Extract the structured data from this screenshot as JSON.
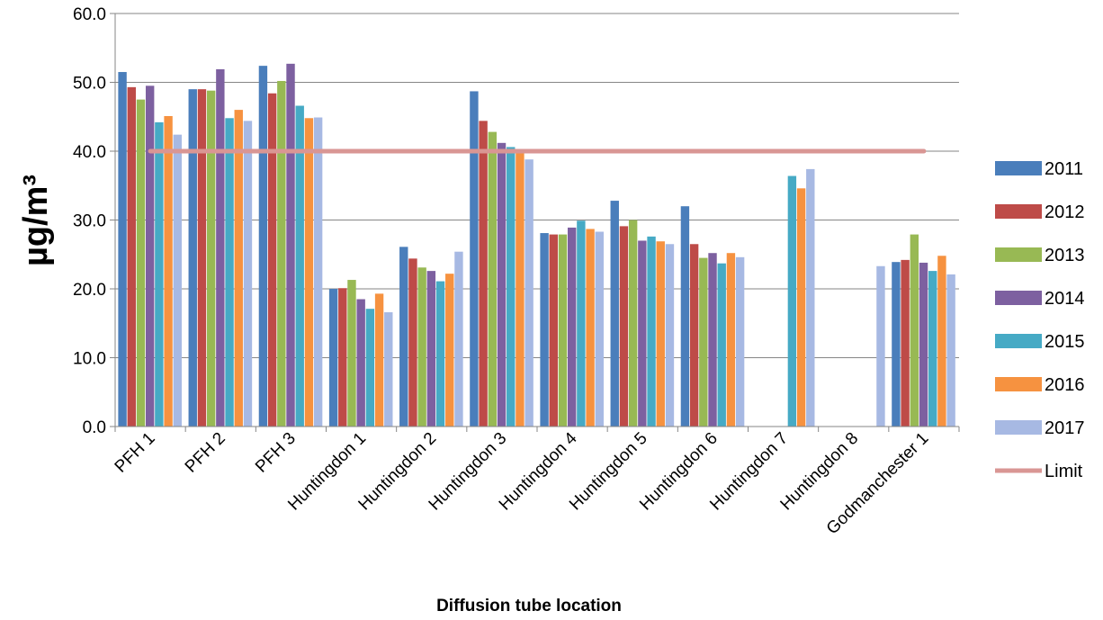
{
  "chart_data": {
    "type": "bar",
    "xlabel": "Diffusion tube location",
    "ylabel": "µg/m³",
    "ylim": [
      0,
      60
    ],
    "yticks": [
      "0.0",
      "10.0",
      "20.0",
      "30.0",
      "40.0",
      "50.0",
      "60.0"
    ],
    "grid": "horizontal",
    "legend_position": "right",
    "categories": [
      "PFH 1",
      "PFH 2",
      "PFH 3",
      "Huntingdon 1",
      "Huntingdon 2",
      "Huntingdon 3",
      "Huntingdon 4",
      "Huntingdon 5",
      "Huntingdon 6",
      "Huntingdon 7",
      "Huntingdon 8",
      "Godmanchester 1"
    ],
    "series": [
      {
        "name": "2011",
        "color": "#4a7ebb",
        "values": [
          51.5,
          49.0,
          52.4,
          20.0,
          26.1,
          48.7,
          28.1,
          32.8,
          32.0,
          null,
          null,
          23.9
        ]
      },
      {
        "name": "2012",
        "color": "#be4b48",
        "values": [
          49.3,
          49.0,
          48.4,
          20.1,
          24.4,
          44.4,
          27.9,
          29.1,
          26.5,
          null,
          null,
          24.2
        ]
      },
      {
        "name": "2013",
        "color": "#98b954",
        "values": [
          47.5,
          48.8,
          50.2,
          21.3,
          23.1,
          42.8,
          27.9,
          30.0,
          24.5,
          null,
          null,
          27.9
        ]
      },
      {
        "name": "2014",
        "color": "#7d60a0",
        "values": [
          49.5,
          51.9,
          52.7,
          18.5,
          22.6,
          41.2,
          28.9,
          27.0,
          25.2,
          null,
          null,
          23.8
        ]
      },
      {
        "name": "2015",
        "color": "#46aac5",
        "values": [
          44.2,
          44.8,
          46.6,
          17.1,
          21.1,
          40.6,
          29.9,
          27.6,
          23.7,
          36.4,
          null,
          22.6
        ]
      },
      {
        "name": "2016",
        "color": "#f69240",
        "values": [
          45.1,
          46.0,
          44.8,
          19.3,
          22.2,
          40.0,
          28.7,
          26.9,
          25.2,
          34.6,
          null,
          24.8
        ]
      },
      {
        "name": "2017",
        "color": "#a7b9e3",
        "values": [
          42.4,
          44.4,
          44.9,
          16.6,
          25.4,
          38.8,
          28.3,
          26.5,
          24.6,
          37.4,
          23.3,
          22.1
        ]
      }
    ],
    "limit": {
      "name": "Limit",
      "value": 40,
      "color": "#d99694"
    }
  }
}
